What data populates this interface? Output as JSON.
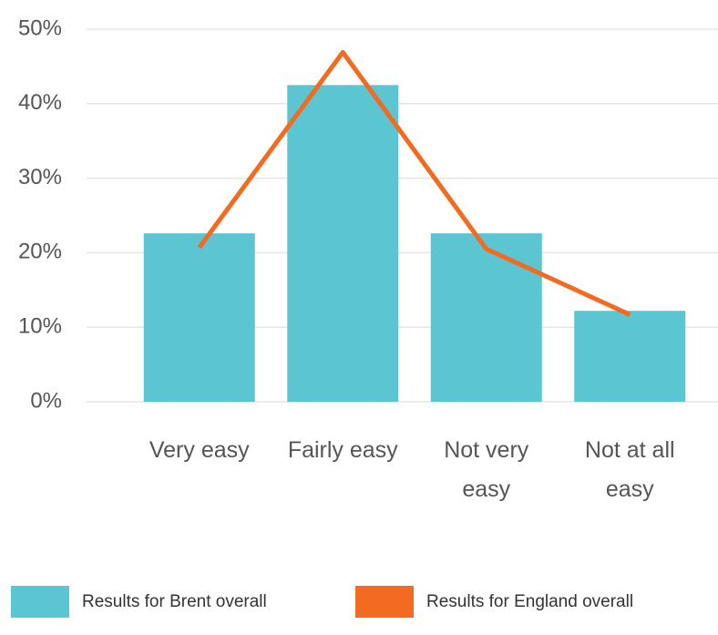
{
  "chart_data": {
    "type": "bar-line",
    "categories": [
      "Very easy",
      "Fairly easy",
      "Not very easy",
      "Not at all easy"
    ],
    "series": [
      {
        "name": "Results for Brent overall",
        "type": "bar",
        "color": "#5bc5d2",
        "values": [
          22.6,
          42.5,
          22.6,
          12.2
        ]
      },
      {
        "name": "Results for England overall",
        "type": "line",
        "color": "#f26b21",
        "values": [
          20.7,
          46.9,
          20.5,
          11.7
        ]
      }
    ],
    "ylim": [
      0,
      50
    ],
    "yticks": [
      {
        "value": 0,
        "label": "0%"
      },
      {
        "value": 10,
        "label": "10%"
      },
      {
        "value": 20,
        "label": "20%"
      },
      {
        "value": 30,
        "label": "30%"
      },
      {
        "value": 40,
        "label": "40%"
      },
      {
        "value": 50,
        "label": "50%"
      }
    ],
    "grid": true
  }
}
